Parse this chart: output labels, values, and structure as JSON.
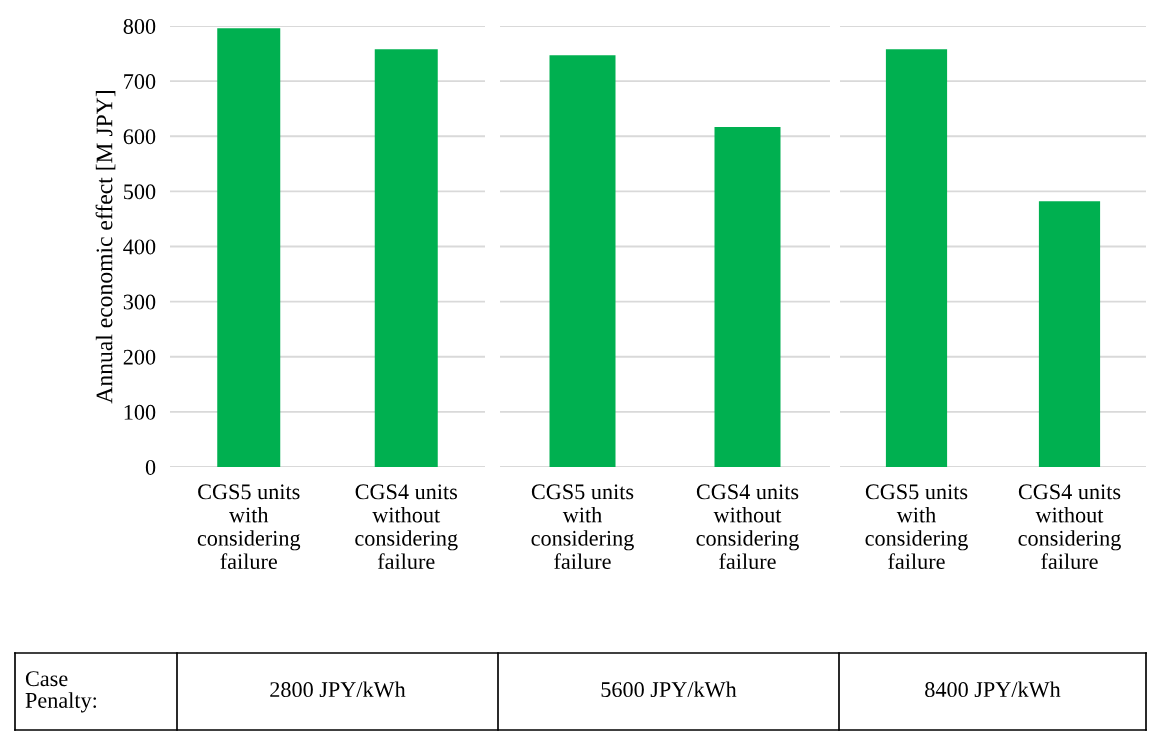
{
  "chart_data": [
    {
      "type": "bar",
      "ylabel": "Annual economic effect [M JPY]",
      "categories": [
        "CGS5 units\nwith\nconsidering\nfailure",
        "CGS4 units\nwithout\nconsidering\nfailure"
      ],
      "values": [
        796,
        758
      ],
      "color": "#00b050",
      "ylim": [
        0,
        800
      ],
      "yticks": [
        0,
        100,
        200,
        300,
        400,
        500,
        600,
        700,
        800
      ],
      "grid": "y",
      "annotations": [
        "Case\nPenalty:",
        "2800 JPY/kWh"
      ]
    },
    {
      "type": "bar",
      "categories": [
        "CGS5 units\nwith\nconsidering\nfailure",
        "CGS4 units\nwithout\nconsidering\nfailure"
      ],
      "values": [
        747,
        617
      ],
      "color": "#00b050",
      "ylim": [
        0,
        800
      ],
      "yticks": [
        0,
        100,
        200,
        300,
        400,
        500,
        600,
        700,
        800
      ],
      "grid": "y",
      "tick_labels": "x",
      "annotations": [
        "5600 JPY/kWh"
      ]
    },
    {
      "type": "bar",
      "categories": [
        "CGS5 units\nwith\nconsidering\nfailure",
        "CGS4 units\nwithout\nconsidering\nfailure"
      ],
      "values": [
        758,
        482
      ],
      "color": "#00b050",
      "ylim": [
        0,
        800
      ],
      "yticks": [
        0,
        100,
        200,
        300,
        400,
        500,
        600,
        700,
        800
      ],
      "grid": "y",
      "tick_labels": "x",
      "annotations": [
        "8400 JPY/kWh"
      ]
    }
  ]
}
